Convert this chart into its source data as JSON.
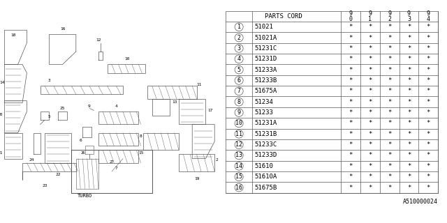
{
  "title": "",
  "bg_color": "#ffffff",
  "part_number_label": "PARTS CORD",
  "year_cols": [
    "9\n0",
    "9\n1",
    "9\n2",
    "9\n3",
    "9\n4"
  ],
  "rows": [
    {
      "num": "1",
      "code": "51021",
      "vals": [
        "*",
        "*",
        "*",
        "*",
        "*"
      ]
    },
    {
      "num": "2",
      "code": "51021A",
      "vals": [
        "*",
        "*",
        "*",
        "*",
        "*"
      ]
    },
    {
      "num": "3",
      "code": "51231C",
      "vals": [
        "*",
        "*",
        "*",
        "*",
        "*"
      ]
    },
    {
      "num": "4",
      "code": "51231D",
      "vals": [
        "*",
        "*",
        "*",
        "*",
        "*"
      ]
    },
    {
      "num": "5",
      "code": "51233A",
      "vals": [
        "*",
        "*",
        "*",
        "*",
        "*"
      ]
    },
    {
      "num": "6",
      "code": "51233B",
      "vals": [
        "*",
        "*",
        "*",
        "*",
        "*"
      ]
    },
    {
      "num": "7",
      "code": "51675A",
      "vals": [
        "*",
        "*",
        "*",
        "*",
        "*"
      ]
    },
    {
      "num": "8",
      "code": "51234",
      "vals": [
        "*",
        "*",
        "*",
        "*",
        "*"
      ]
    },
    {
      "num": "9",
      "code": "51233",
      "vals": [
        "*",
        "*",
        "*",
        "*",
        "*"
      ]
    },
    {
      "num": "10",
      "code": "51231A",
      "vals": [
        "*",
        "*",
        "*",
        "*",
        "*"
      ]
    },
    {
      "num": "11",
      "code": "51231B",
      "vals": [
        "*",
        "*",
        "*",
        "*",
        "*"
      ]
    },
    {
      "num": "12",
      "code": "51233C",
      "vals": [
        "*",
        "*",
        "*",
        "*",
        "*"
      ]
    },
    {
      "num": "13",
      "code": "51233D",
      "vals": [
        "*",
        "*",
        "*",
        "*",
        "*"
      ]
    },
    {
      "num": "14",
      "code": "51610",
      "vals": [
        "*",
        "*",
        "*",
        "*",
        "*"
      ]
    },
    {
      "num": "15",
      "code": "51610A",
      "vals": [
        "*",
        "*",
        "*",
        "*",
        "*"
      ]
    },
    {
      "num": "16",
      "code": "51675B",
      "vals": [
        "*",
        "*",
        "*",
        "*",
        "*"
      ]
    }
  ],
  "footer_code": "A510000024",
  "line_color": "#555555",
  "text_color": "#000000",
  "font_size_table": 6.5,
  "font_size_header": 6.5,
  "font_size_footer": 6.0
}
